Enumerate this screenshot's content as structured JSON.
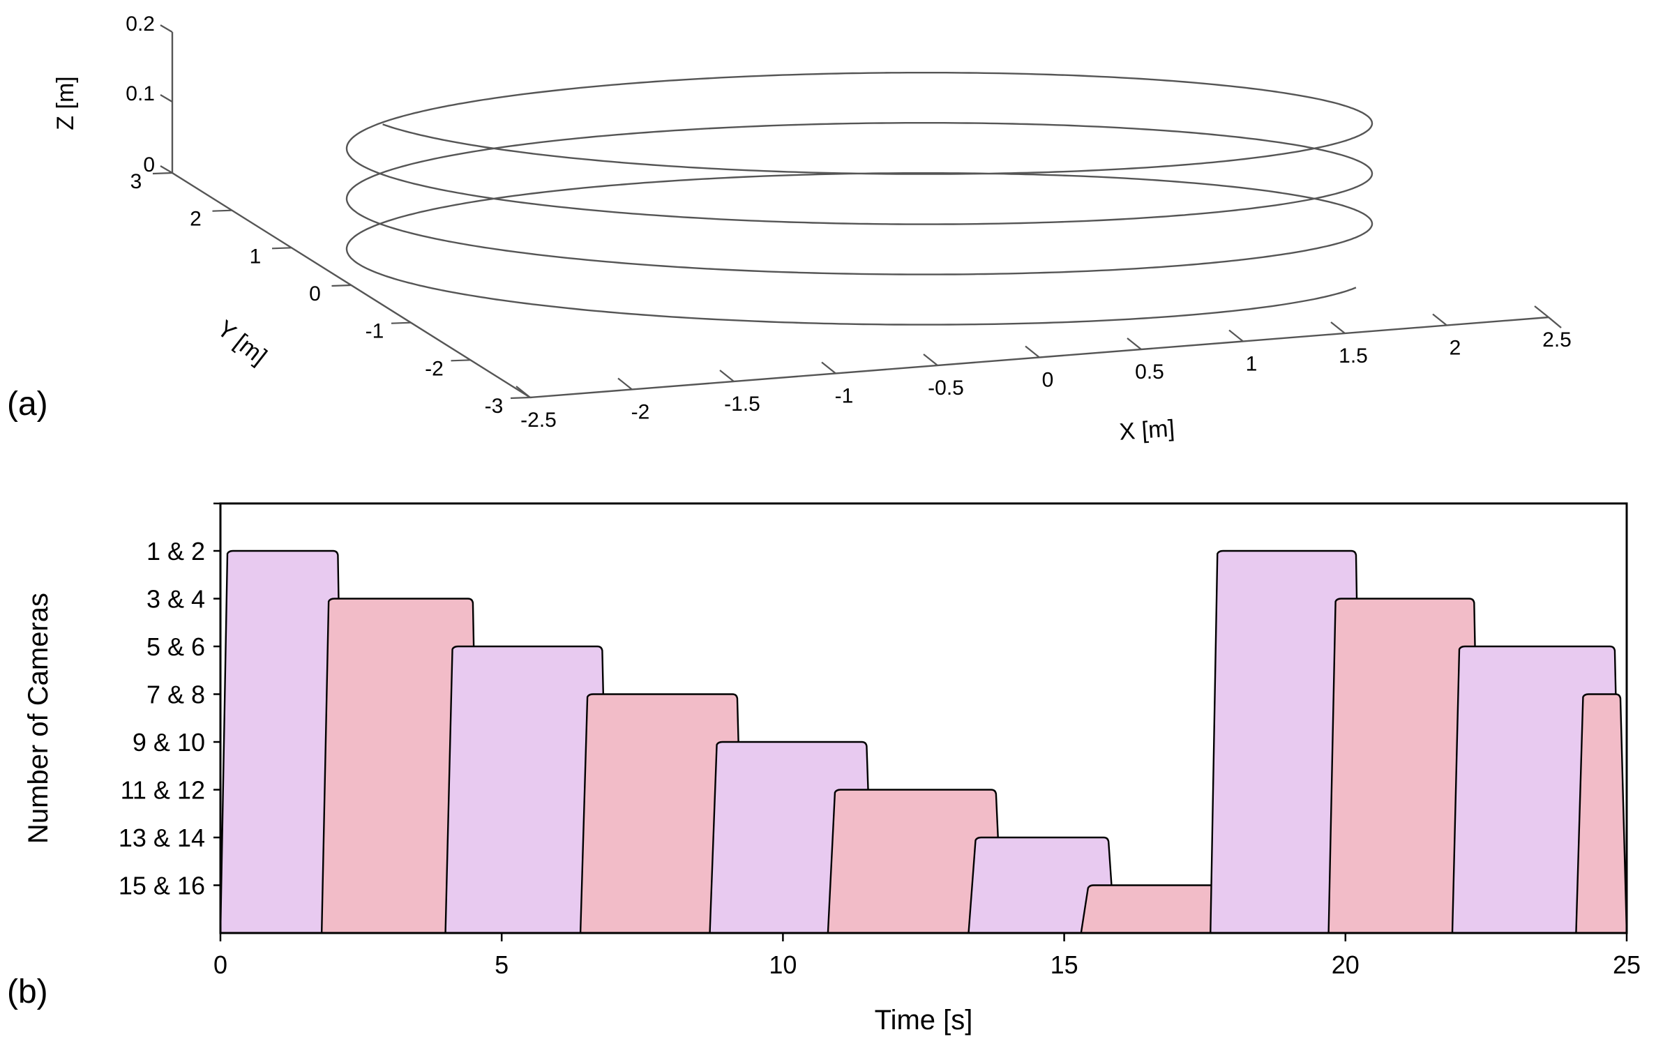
{
  "panel_a": {
    "label": "(a)",
    "chart_data": {
      "type": "line3d",
      "description_series": "helix",
      "xlabel": "X [m]",
      "ylabel": "Y [m]",
      "zlabel": "Z [m]",
      "xticks": [
        "-2.5",
        "-2",
        "-1.5",
        "-1",
        "-0.5",
        "0",
        "0.5",
        "1",
        "1.5",
        "2",
        "2.5"
      ],
      "yticks": [
        "3",
        "2",
        "1",
        "0",
        "-1",
        "-2",
        "-3"
      ],
      "zticks": [
        "0.2",
        "0.1",
        "0"
      ],
      "xlim": [
        -2.5,
        2.5
      ],
      "ylim": [
        -3,
        3
      ],
      "zlim": [
        0,
        0.2
      ],
      "helix": {
        "radius_x": 1.8,
        "radius_y": 2.8,
        "turns": 3.4,
        "z_start": 0.02,
        "z_end": 0.17
      }
    }
  },
  "panel_b": {
    "label": "(b)",
    "chart_data": {
      "type": "area",
      "xlabel": "Time [s]",
      "ylabel": "Number of Cameras",
      "xlim": [
        0,
        25
      ],
      "xticks": [
        "0",
        "5",
        "10",
        "15",
        "20",
        "25"
      ],
      "categories": [
        "1 & 2",
        "3 & 4",
        "5 & 6",
        "7 & 8",
        "9 & 10",
        "11 & 12",
        "13 & 14",
        "15 & 16"
      ],
      "colors": {
        "odd": "#e8caf0",
        "even": "#f2bcc8"
      },
      "segments": [
        {
          "camera_pair": "1 & 2",
          "start": 0.0,
          "end": 2.2
        },
        {
          "camera_pair": "3 & 4",
          "start": 1.8,
          "end": 4.6
        },
        {
          "camera_pair": "5 & 6",
          "start": 4.0,
          "end": 6.9
        },
        {
          "camera_pair": "7 & 8",
          "start": 6.4,
          "end": 9.3
        },
        {
          "camera_pair": "9 & 10",
          "start": 8.7,
          "end": 11.6
        },
        {
          "camera_pair": "11 & 12",
          "start": 10.8,
          "end": 13.9
        },
        {
          "camera_pair": "13 & 14",
          "start": 13.3,
          "end": 15.9
        },
        {
          "camera_pair": "15 & 16",
          "start": 15.3,
          "end": 18.2
        },
        {
          "camera_pair": "1 & 2",
          "start": 17.6,
          "end": 20.3
        },
        {
          "camera_pair": "3 & 4",
          "start": 19.7,
          "end": 22.4
        },
        {
          "camera_pair": "5 & 6",
          "start": 21.9,
          "end": 24.9
        },
        {
          "camera_pair": "7 & 8",
          "start": 24.1,
          "end": 25.0
        }
      ]
    }
  }
}
